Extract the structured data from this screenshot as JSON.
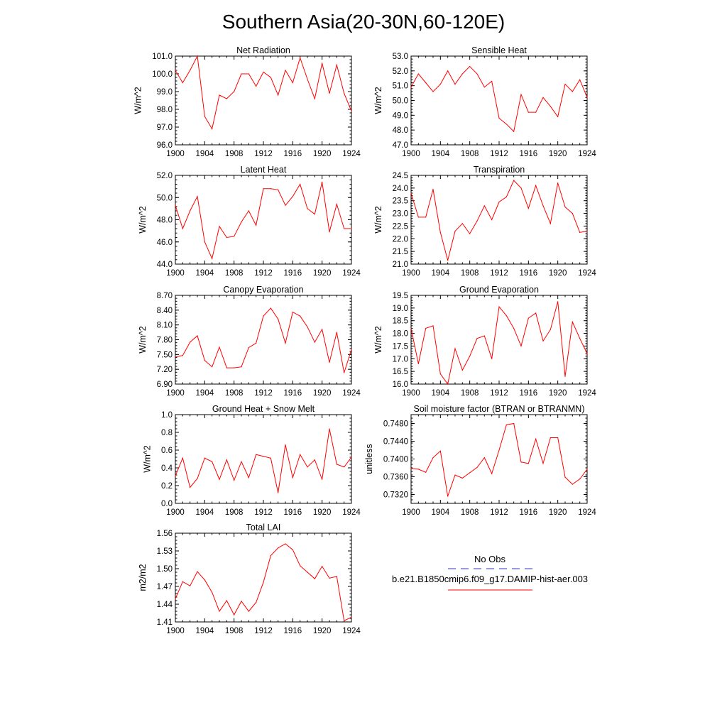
{
  "title": "Southern Asia(20-30N,60-120E)",
  "colors": {
    "model": "#ff0000",
    "obs": "#3333cc",
    "axis": "#000000"
  },
  "legend": {
    "obs_label": "No Obs",
    "model_label": "b.e21.B1850cmip6.f09_g17.DAMIP-hist-aer.003"
  },
  "chart_data": [
    {
      "type": "line",
      "title": "Net Radiation",
      "ylabel": "W/m^2",
      "xlim": [
        1900,
        1924
      ],
      "ylim": [
        96.0,
        101.0
      ],
      "xticks": [
        "1900",
        "1904",
        "1908",
        "1912",
        "1916",
        "1920",
        "1924"
      ],
      "yticks": [
        "96.0",
        "97.0",
        "98.0",
        "99.0",
        "100.0",
        "101.0"
      ],
      "x": [
        1900,
        1901,
        1902,
        1903,
        1904,
        1905,
        1906,
        1907,
        1908,
        1909,
        1910,
        1911,
        1912,
        1913,
        1914,
        1915,
        1916,
        1917,
        1918,
        1919,
        1920,
        1921,
        1922,
        1923,
        1924
      ],
      "series": [
        {
          "values": [
            100.2,
            99.5,
            100.2,
            101.0,
            97.6,
            96.9,
            98.8,
            98.6,
            99.0,
            100.0,
            100.0,
            99.3,
            100.1,
            99.8,
            98.8,
            100.2,
            99.5,
            100.9,
            99.7,
            98.6,
            100.6,
            98.9,
            100.5,
            98.9,
            97.9
          ]
        }
      ]
    },
    {
      "type": "line",
      "title": "Sensible Heat",
      "ylabel": "W/m^2",
      "xlim": [
        1900,
        1924
      ],
      "ylim": [
        47.0,
        53.0
      ],
      "xticks": [
        "1900",
        "1904",
        "1908",
        "1912",
        "1916",
        "1920",
        "1924"
      ],
      "yticks": [
        "47.0",
        "48.0",
        "49.0",
        "50.0",
        "51.0",
        "52.0",
        "53.0"
      ],
      "x": [
        1900,
        1901,
        1902,
        1903,
        1904,
        1905,
        1906,
        1907,
        1908,
        1909,
        1910,
        1911,
        1912,
        1913,
        1914,
        1915,
        1916,
        1917,
        1918,
        1919,
        1920,
        1921,
        1922,
        1923,
        1924
      ],
      "series": [
        {
          "values": [
            50.9,
            51.8,
            51.2,
            50.6,
            51.1,
            52.0,
            51.1,
            51.8,
            52.3,
            51.8,
            50.9,
            51.3,
            48.8,
            48.4,
            47.9,
            50.4,
            49.2,
            49.2,
            50.2,
            49.6,
            48.9,
            51.1,
            50.6,
            51.4,
            50.2
          ]
        }
      ]
    },
    {
      "type": "line",
      "title": "Latent Heat",
      "ylabel": "W/m^2",
      "xlim": [
        1900,
        1924
      ],
      "ylim": [
        44.0,
        52.0
      ],
      "xticks": [
        "1900",
        "1904",
        "1908",
        "1912",
        "1916",
        "1920",
        "1924"
      ],
      "yticks": [
        "44.0",
        "46.0",
        "48.0",
        "50.0",
        "52.0"
      ],
      "x": [
        1900,
        1901,
        1902,
        1903,
        1904,
        1905,
        1906,
        1907,
        1908,
        1909,
        1910,
        1911,
        1912,
        1913,
        1914,
        1915,
        1916,
        1917,
        1918,
        1919,
        1920,
        1921,
        1922,
        1923,
        1924
      ],
      "series": [
        {
          "values": [
            49.3,
            47.2,
            48.8,
            50.1,
            46.0,
            44.5,
            47.4,
            46.4,
            46.5,
            47.8,
            48.8,
            47.5,
            50.8,
            50.8,
            50.7,
            49.3,
            50.1,
            51.2,
            49.0,
            48.5,
            51.4,
            46.9,
            49.4,
            47.2,
            47.2
          ]
        }
      ]
    },
    {
      "type": "line",
      "title": "Transpiration",
      "ylabel": "W/m^2",
      "xlim": [
        1900,
        1924
      ],
      "ylim": [
        21.0,
        24.5
      ],
      "xticks": [
        "1900",
        "1904",
        "1908",
        "1912",
        "1916",
        "1920",
        "1924"
      ],
      "yticks": [
        "21.0",
        "21.5",
        "22.0",
        "22.5",
        "23.0",
        "23.5",
        "24.0",
        "24.5"
      ],
      "x": [
        1900,
        1901,
        1902,
        1903,
        1904,
        1905,
        1906,
        1907,
        1908,
        1909,
        1910,
        1911,
        1912,
        1913,
        1914,
        1915,
        1916,
        1917,
        1918,
        1919,
        1920,
        1921,
        1922,
        1923,
        1924
      ],
      "series": [
        {
          "values": [
            23.8,
            22.85,
            22.85,
            23.95,
            22.25,
            21.15,
            22.3,
            22.6,
            22.2,
            22.7,
            23.3,
            22.75,
            23.45,
            23.65,
            24.3,
            24.0,
            23.2,
            24.1,
            23.3,
            22.6,
            24.2,
            23.25,
            23.0,
            22.25,
            22.3
          ]
        }
      ]
    },
    {
      "type": "line",
      "title": "Canopy Evaporation",
      "ylabel": "W/m^2",
      "xlim": [
        1900,
        1924
      ],
      "ylim": [
        6.9,
        8.7
      ],
      "xticks": [
        "1900",
        "1904",
        "1908",
        "1912",
        "1916",
        "1920",
        "1924"
      ],
      "yticks": [
        "6.90",
        "7.20",
        "7.50",
        "7.80",
        "8.10",
        "8.40",
        "8.70"
      ],
      "x": [
        1900,
        1901,
        1902,
        1903,
        1904,
        1905,
        1906,
        1907,
        1908,
        1909,
        1910,
        1911,
        1912,
        1913,
        1914,
        1915,
        1916,
        1917,
        1918,
        1919,
        1920,
        1921,
        1922,
        1923,
        1924
      ],
      "series": [
        {
          "values": [
            7.45,
            7.48,
            7.75,
            7.88,
            7.38,
            7.25,
            7.65,
            7.23,
            7.23,
            7.25,
            7.64,
            7.73,
            8.28,
            8.44,
            8.22,
            7.73,
            8.36,
            8.28,
            8.06,
            7.75,
            8.01,
            7.34,
            7.95,
            7.13,
            7.6
          ]
        }
      ]
    },
    {
      "type": "line",
      "title": "Ground Evaporation",
      "ylabel": "W/m^2",
      "xlim": [
        1900,
        1924
      ],
      "ylim": [
        16.0,
        19.5
      ],
      "xticks": [
        "1900",
        "1904",
        "1908",
        "1912",
        "1916",
        "1920",
        "1924"
      ],
      "yticks": [
        "16.0",
        "16.5",
        "17.0",
        "17.5",
        "18.0",
        "18.5",
        "19.0",
        "19.5"
      ],
      "x": [
        1900,
        1901,
        1902,
        1903,
        1904,
        1905,
        1906,
        1907,
        1908,
        1909,
        1910,
        1911,
        1912,
        1913,
        1914,
        1915,
        1916,
        1917,
        1918,
        1919,
        1920,
        1921,
        1922,
        1923,
        1924
      ],
      "series": [
        {
          "values": [
            18.2,
            16.8,
            18.2,
            18.3,
            16.4,
            16.0,
            17.4,
            16.55,
            17.1,
            17.8,
            17.9,
            17.0,
            19.05,
            18.7,
            18.2,
            17.5,
            18.6,
            18.8,
            17.7,
            18.15,
            19.25,
            16.3,
            18.45,
            17.8,
            17.2
          ]
        }
      ]
    },
    {
      "type": "line",
      "title": "Ground Heat + Snow Melt",
      "ylabel": "W/m^2",
      "xlim": [
        1900,
        1924
      ],
      "ylim": [
        0.0,
        1.0
      ],
      "xticks": [
        "1900",
        "1904",
        "1908",
        "1912",
        "1916",
        "1920",
        "1924"
      ],
      "yticks": [
        "0.0",
        "0.2",
        "0.4",
        "0.6",
        "0.8",
        "1.0"
      ],
      "x": [
        1900,
        1901,
        1902,
        1903,
        1904,
        1905,
        1906,
        1907,
        1908,
        1909,
        1910,
        1911,
        1912,
        1913,
        1914,
        1915,
        1916,
        1917,
        1918,
        1919,
        1920,
        1921,
        1922,
        1923,
        1924
      ],
      "series": [
        {
          "values": [
            0.31,
            0.51,
            0.18,
            0.28,
            0.51,
            0.47,
            0.27,
            0.49,
            0.26,
            0.47,
            0.29,
            0.55,
            0.53,
            0.51,
            0.12,
            0.66,
            0.29,
            0.55,
            0.41,
            0.49,
            0.27,
            0.84,
            0.44,
            0.41,
            0.52
          ]
        }
      ]
    },
    {
      "type": "line",
      "title": "Soil moisture factor (BTRAN or BTRANMN)",
      "ylabel": "unitless",
      "xlim": [
        1900,
        1924
      ],
      "ylim": [
        0.73,
        0.75
      ],
      "xticks": [
        "1900",
        "1904",
        "1908",
        "1912",
        "1916",
        "1920",
        "1924"
      ],
      "yticks": [
        "0.7320",
        "0.7360",
        "0.7400",
        "0.7440",
        "0.7480"
      ],
      "x": [
        1900,
        1901,
        1902,
        1903,
        1904,
        1905,
        1906,
        1907,
        1908,
        1909,
        1910,
        1911,
        1912,
        1913,
        1914,
        1915,
        1916,
        1917,
        1918,
        1919,
        1920,
        1921,
        1922,
        1923,
        1924
      ],
      "series": [
        {
          "values": [
            0.7379,
            0.7377,
            0.737,
            0.7403,
            0.7418,
            0.7316,
            0.7364,
            0.7357,
            0.7369,
            0.7381,
            0.7403,
            0.7367,
            0.742,
            0.7477,
            0.748,
            0.7393,
            0.739,
            0.7445,
            0.739,
            0.7448,
            0.7448,
            0.7359,
            0.7343,
            0.7355,
            0.7377
          ]
        }
      ]
    },
    {
      "type": "line",
      "title": "Total LAI",
      "ylabel": "m2/m2",
      "xlim": [
        1900,
        1924
      ],
      "ylim": [
        1.41,
        1.56
      ],
      "xticks": [
        "1900",
        "1904",
        "1908",
        "1912",
        "1916",
        "1920",
        "1924"
      ],
      "yticks": [
        "1.41",
        "1.44",
        "1.47",
        "1.50",
        "1.53",
        "1.56"
      ],
      "x": [
        1900,
        1901,
        1902,
        1903,
        1904,
        1905,
        1906,
        1907,
        1908,
        1909,
        1910,
        1911,
        1912,
        1913,
        1914,
        1915,
        1916,
        1917,
        1918,
        1919,
        1920,
        1921,
        1922,
        1923,
        1924
      ],
      "series": [
        {
          "values": [
            1.449,
            1.478,
            1.471,
            1.495,
            1.481,
            1.46,
            1.428,
            1.446,
            1.422,
            1.445,
            1.428,
            1.443,
            1.477,
            1.522,
            1.535,
            1.542,
            1.532,
            1.505,
            1.494,
            1.483,
            1.504,
            1.484,
            1.487,
            1.412,
            1.418
          ]
        }
      ]
    }
  ]
}
